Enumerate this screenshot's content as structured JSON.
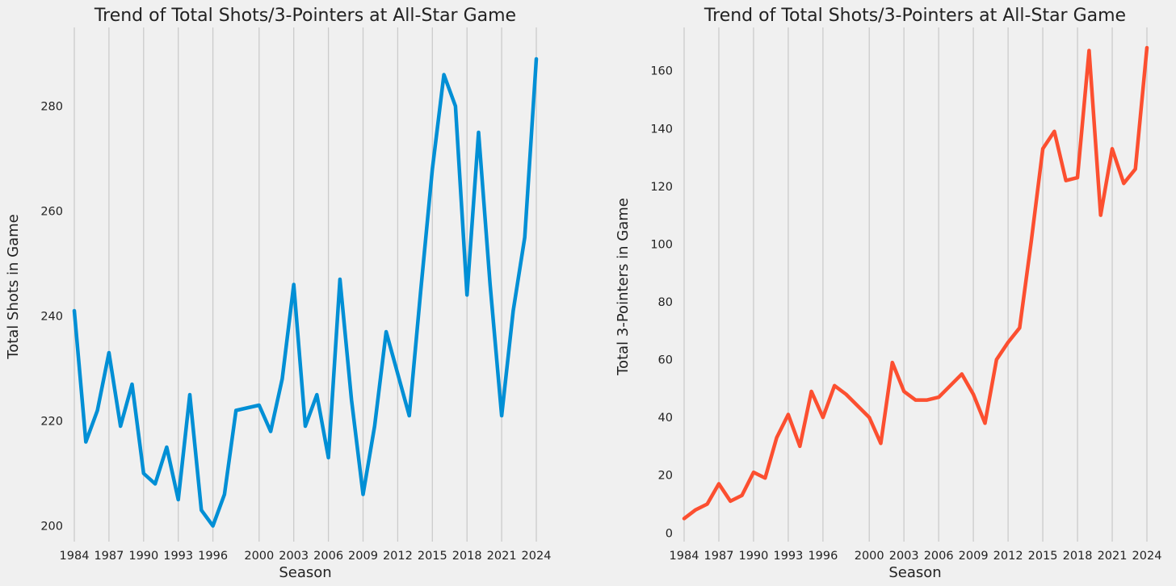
{
  "chart_data": [
    {
      "type": "line",
      "title": "Trend of Total Shots/3-Pointers at All-Star Game",
      "xlabel": "Season",
      "ylabel": "Total Shots in Game",
      "color": "#008fd5",
      "grid": "vertical",
      "xlim": [
        1984,
        2024
      ],
      "ylim": [
        197,
        295
      ],
      "x_ticks": [
        1984,
        1987,
        1990,
        1993,
        1996,
        2000,
        2003,
        2006,
        2009,
        2012,
        2015,
        2018,
        2021,
        2024
      ],
      "y_ticks": [
        200,
        220,
        240,
        260,
        280
      ],
      "series": [
        {
          "x": [
            1984,
            1985,
            1986,
            1987,
            1988,
            1989,
            1990,
            1991,
            1992,
            1993,
            1994,
            1995,
            1996,
            1997,
            1998,
            2000,
            2001,
            2002,
            2003,
            2004,
            2005,
            2006,
            2007,
            2008,
            2009,
            2010,
            2011,
            2012,
            2013,
            2014,
            2015,
            2016,
            2017,
            2018,
            2019,
            2020,
            2021,
            2022,
            2023,
            2024
          ],
          "values": [
            241,
            216,
            222,
            233,
            219,
            227,
            210,
            208,
            215,
            205,
            225,
            203,
            200,
            206,
            222,
            223,
            218,
            228,
            246,
            219,
            225,
            213,
            247,
            224,
            206,
            219,
            237,
            229,
            221,
            245,
            268,
            286,
            280,
            244,
            275,
            246,
            221,
            241,
            255,
            289
          ]
        }
      ]
    },
    {
      "type": "line",
      "title": "Trend of Total Shots/3-Pointers at All-Star Game",
      "xlabel": "Season",
      "ylabel": "Total 3-Pointers in Game",
      "color": "#fc4f30",
      "grid": "vertical",
      "xlim": [
        1984,
        2024
      ],
      "ylim": [
        -3,
        175
      ],
      "x_ticks": [
        1984,
        1987,
        1990,
        1993,
        1996,
        2000,
        2003,
        2006,
        2009,
        2012,
        2015,
        2018,
        2021,
        2024
      ],
      "y_ticks": [
        0,
        20,
        40,
        60,
        80,
        100,
        120,
        140,
        160
      ],
      "series": [
        {
          "x": [
            1984,
            1985,
            1986,
            1987,
            1988,
            1989,
            1990,
            1991,
            1992,
            1993,
            1994,
            1995,
            1996,
            1997,
            1998,
            2000,
            2001,
            2002,
            2003,
            2004,
            2005,
            2006,
            2007,
            2008,
            2009,
            2010,
            2011,
            2012,
            2013,
            2014,
            2015,
            2016,
            2017,
            2018,
            2019,
            2020,
            2021,
            2022,
            2023,
            2024
          ],
          "values": [
            5,
            8,
            10,
            17,
            11,
            13,
            21,
            19,
            33,
            41,
            30,
            49,
            40,
            51,
            48,
            40,
            31,
            59,
            49,
            46,
            46,
            47,
            51,
            55,
            48,
            38,
            60,
            66,
            71,
            101,
            133,
            139,
            122,
            123,
            167,
            110,
            133,
            121,
            126,
            168
          ]
        }
      ]
    }
  ]
}
